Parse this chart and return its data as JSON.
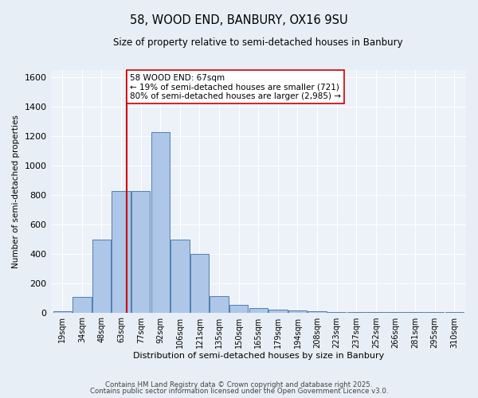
{
  "title": "58, WOOD END, BANBURY, OX16 9SU",
  "subtitle": "Size of property relative to semi-detached houses in Banbury",
  "xlabel": "Distribution of semi-detached houses by size in Banbury",
  "ylabel": "Number of semi-detached properties",
  "categories": [
    "19sqm",
    "34sqm",
    "48sqm",
    "63sqm",
    "77sqm",
    "92sqm",
    "106sqm",
    "121sqm",
    "135sqm",
    "150sqm",
    "165sqm",
    "179sqm",
    "194sqm",
    "208sqm",
    "223sqm",
    "237sqm",
    "252sqm",
    "266sqm",
    "281sqm",
    "295sqm",
    "310sqm"
  ],
  "values": [
    10,
    105,
    495,
    825,
    825,
    1225,
    495,
    400,
    110,
    50,
    30,
    20,
    15,
    10,
    5,
    2,
    2,
    2,
    1,
    1,
    1
  ],
  "bar_color": "#aec6e8",
  "bar_edge_color": "#5080b0",
  "vline_color": "#cc0000",
  "annotation_text": "58 WOOD END: 67sqm\n← 19% of semi-detached houses are smaller (721)\n80% of semi-detached houses are larger (2,985) →",
  "annotation_box_color": "#ffffff",
  "annotation_box_edge": "#cc0000",
  "footnote1": "Contains HM Land Registry data © Crown copyright and database right 2025.",
  "footnote2": "Contains public sector information licensed under the Open Government Licence v3.0.",
  "ylim": [
    0,
    1650
  ],
  "background_color": "#e8eef5",
  "plot_background": "#edf1f8",
  "grid_color": "#ffffff"
}
